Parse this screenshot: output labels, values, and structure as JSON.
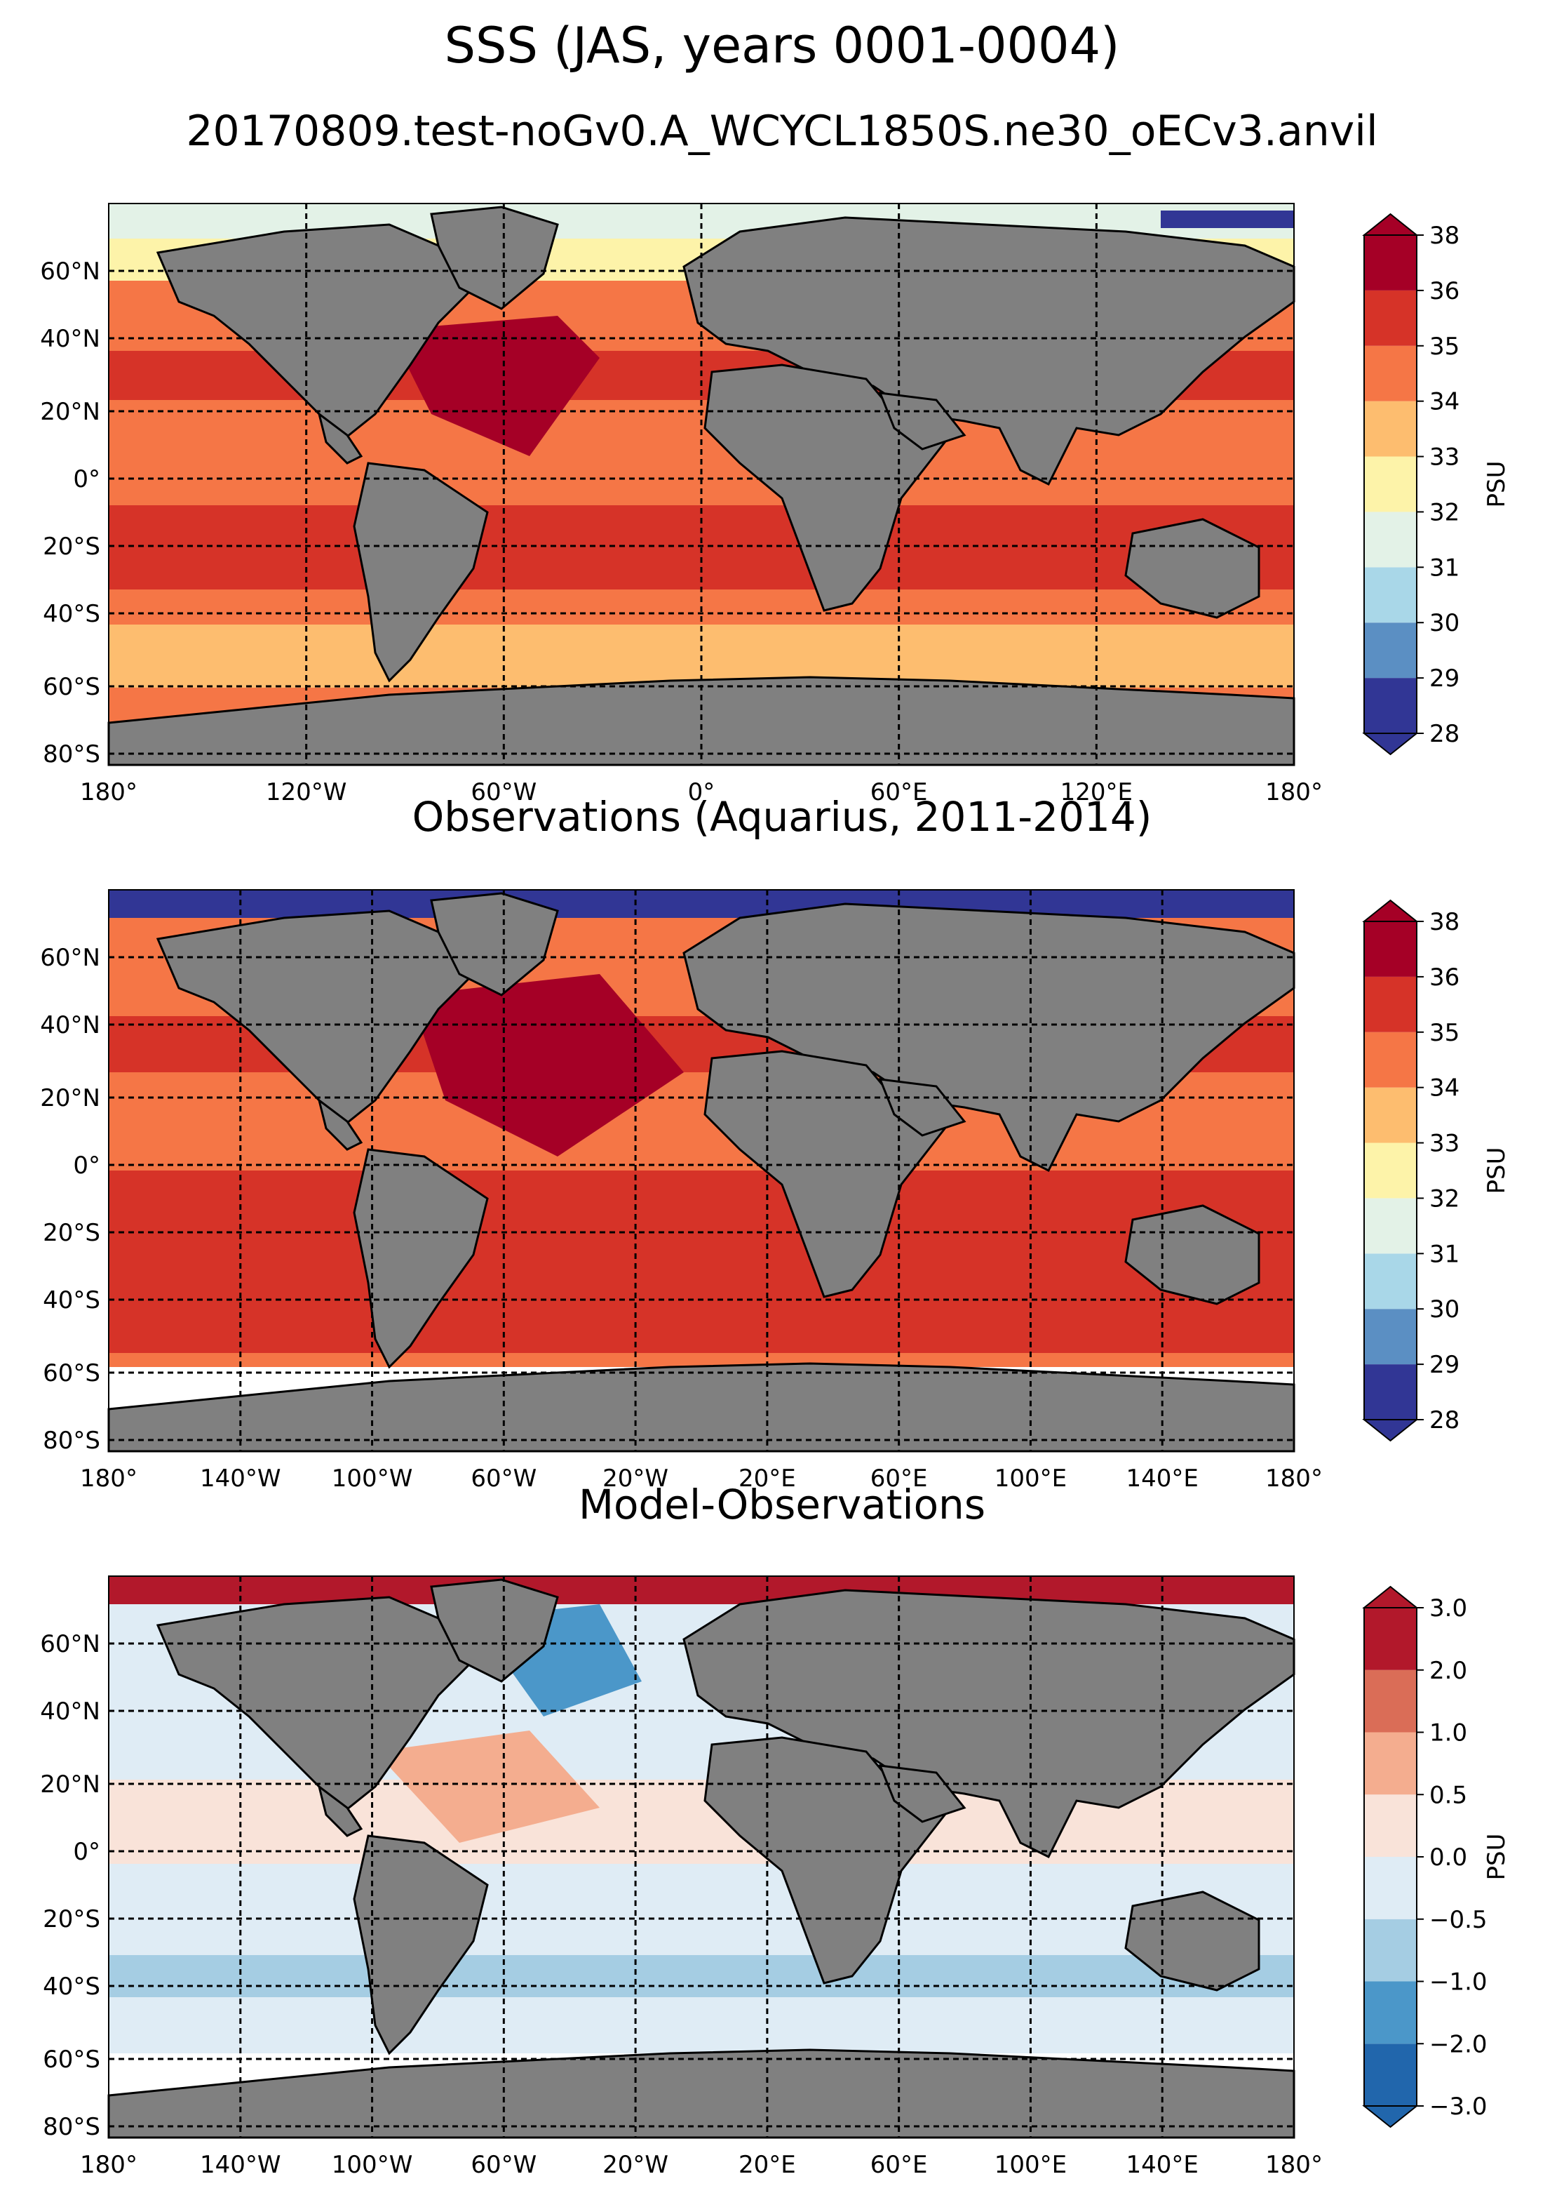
{
  "figure": {
    "title": "SSS (JAS, years 0001-0004)",
    "subtitle": "20170809.test-noGv0.A_WCYCL1850S.ne30_oECv3.anvil"
  },
  "panels": [
    {
      "id": "model",
      "title": "",
      "lat_ticks": [
        "60°N",
        "40°N",
        "20°N",
        "0°",
        "20°S",
        "40°S",
        "60°S",
        "80°S"
      ],
      "lon_ticks": [
        "180°",
        "120°W",
        "60°W",
        "0°",
        "60°E",
        "120°E",
        "180°"
      ],
      "colorbar": {
        "label": "PSU",
        "ticks": [
          "38",
          "36",
          "35",
          "34",
          "33",
          "32",
          "31",
          "30",
          "29",
          "28"
        ],
        "colors": [
          "#313695",
          "#5b8fc3",
          "#a9d7e8",
          "#e3f2e7",
          "#fdf3a9",
          "#fdbd6f",
          "#f57646",
          "#d63328",
          "#a50026"
        ]
      }
    },
    {
      "id": "observations",
      "title": "Observations (Aquarius, 2011-2014)",
      "lat_ticks": [
        "60°N",
        "40°N",
        "20°N",
        "0°",
        "20°S",
        "40°S",
        "60°S",
        "80°S"
      ],
      "lon_ticks": [
        "180°",
        "140°W",
        "100°W",
        "60°W",
        "20°W",
        "20°E",
        "60°E",
        "100°E",
        "140°E",
        "180°"
      ],
      "colorbar": {
        "label": "PSU",
        "ticks": [
          "38",
          "36",
          "35",
          "34",
          "33",
          "32",
          "31",
          "30",
          "29",
          "28"
        ],
        "colors": [
          "#313695",
          "#5b8fc3",
          "#a9d7e8",
          "#e3f2e7",
          "#fdf3a9",
          "#fdbd6f",
          "#f57646",
          "#d63328",
          "#a50026"
        ]
      }
    },
    {
      "id": "difference",
      "title": "Model-Observations",
      "lat_ticks": [
        "60°N",
        "40°N",
        "20°N",
        "0°",
        "20°S",
        "40°S",
        "60°S",
        "80°S"
      ],
      "lon_ticks": [
        "180°",
        "140°W",
        "100°W",
        "60°W",
        "20°W",
        "20°E",
        "60°E",
        "100°E",
        "140°E",
        "180°"
      ],
      "colorbar": {
        "label": "PSU",
        "ticks": [
          "3.0",
          "2.0",
          "1.0",
          "0.5",
          "0.0",
          "−0.5",
          "−1.0",
          "−2.0",
          "−3.0"
        ],
        "colors": [
          "#2166ac",
          "#4b97c9",
          "#a5cde3",
          "#dfecf5",
          "#f9e3d9",
          "#f4ad8f",
          "#da6d57",
          "#b2182b"
        ]
      }
    }
  ],
  "colors": {
    "land": "#808080",
    "ocean_fill_model": "#f57646",
    "ocean_fill_obs": "#d63328",
    "ocean_fill_diff": "#dfecf5",
    "missing": "#ffffff"
  }
}
